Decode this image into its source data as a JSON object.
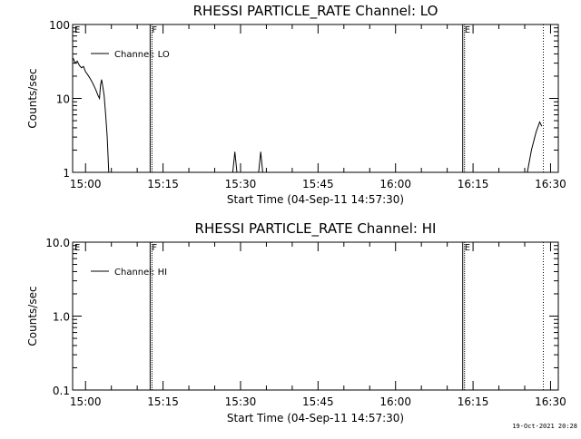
{
  "footer": {
    "timestamp": "19-Oct-2021 20:28"
  },
  "chart_data": [
    {
      "type": "line",
      "title": "RHESSI PARTICLE_RATE Channel: LO",
      "xlabel": "Start Time (04-Sep-11 14:57:30)",
      "ylabel": "Counts/sec",
      "yscale": "log",
      "ylim": [
        1,
        100
      ],
      "xlim_min": [
        -2.5,
        91.5
      ],
      "y_ticks": [
        {
          "v": 1,
          "label": "1"
        },
        {
          "v": 10,
          "label": "10"
        },
        {
          "v": 100,
          "label": "100"
        }
      ],
      "x_ticks": [
        {
          "v": 0,
          "label": "15:00"
        },
        {
          "v": 15,
          "label": "15:15"
        },
        {
          "v": 30,
          "label": "15:30"
        },
        {
          "v": 45,
          "label": "15:45"
        },
        {
          "v": 60,
          "label": "16:00"
        },
        {
          "v": 75,
          "label": "16:15"
        },
        {
          "v": 90,
          "label": "16:30"
        }
      ],
      "grid": false,
      "legend": {
        "position": "top-left",
        "entries": [
          {
            "label": "Channel: LO"
          }
        ]
      },
      "markers": [
        {
          "label": "E",
          "x": -2.5,
          "style": "solid",
          "show_line": false
        },
        {
          "label": "F",
          "x": 12.5,
          "style": "solid"
        },
        {
          "label": "E",
          "x": 73,
          "style": "solid"
        },
        {
          "label": "",
          "x": 88.6,
          "style": "dotted"
        }
      ],
      "series": [
        {
          "name": "Channel: LO",
          "segments": [
            [
              [
                -2.4,
                35
              ],
              [
                -2,
                30
              ],
              [
                -1.6,
                32
              ],
              [
                -1.2,
                28
              ],
              [
                -0.8,
                26
              ],
              [
                -0.4,
                27
              ],
              [
                0,
                23
              ],
              [
                0.4,
                21
              ],
              [
                0.8,
                19
              ],
              [
                1.2,
                17
              ],
              [
                1.6,
                15
              ],
              [
                2.0,
                13
              ],
              [
                2.4,
                11
              ],
              [
                2.7,
                10
              ],
              [
                2.9,
                15
              ],
              [
                3.1,
                18
              ],
              [
                3.3,
                15
              ],
              [
                3.6,
                11
              ],
              [
                3.9,
                6
              ],
              [
                4.2,
                3
              ],
              [
                4.5,
                1
              ]
            ],
            [
              [
                28.5,
                1
              ],
              [
                28.9,
                1.9
              ],
              [
                29.3,
                1
              ]
            ],
            [
              [
                33.5,
                1
              ],
              [
                33.9,
                1.9
              ],
              [
                34.3,
                1
              ]
            ],
            [
              [
                85.5,
                1
              ],
              [
                86.3,
                2
              ],
              [
                87.2,
                3.5
              ],
              [
                87.9,
                4.8
              ],
              [
                88.3,
                4.2
              ]
            ]
          ]
        }
      ]
    },
    {
      "type": "line",
      "title": "RHESSI PARTICLE_RATE Channel: HI",
      "xlabel": "Start Time (04-Sep-11 14:57:30)",
      "ylabel": "Counts/sec",
      "yscale": "log",
      "ylim": [
        0.1,
        10
      ],
      "xlim_min": [
        -2.5,
        91.5
      ],
      "y_ticks": [
        {
          "v": 0.1,
          "label": "0.1"
        },
        {
          "v": 1,
          "label": "1.0"
        },
        {
          "v": 10,
          "label": "10.0"
        }
      ],
      "x_ticks": [
        {
          "v": 0,
          "label": "15:00"
        },
        {
          "v": 15,
          "label": "15:15"
        },
        {
          "v": 30,
          "label": "15:30"
        },
        {
          "v": 45,
          "label": "15:45"
        },
        {
          "v": 60,
          "label": "16:00"
        },
        {
          "v": 75,
          "label": "16:15"
        },
        {
          "v": 90,
          "label": "16:30"
        }
      ],
      "grid": false,
      "legend": {
        "position": "top-left",
        "entries": [
          {
            "label": "Channel: HI"
          }
        ]
      },
      "markers": [
        {
          "label": "E",
          "x": -2.5,
          "style": "solid",
          "show_line": false
        },
        {
          "label": "F",
          "x": 12.5,
          "style": "solid"
        },
        {
          "label": "E",
          "x": 73,
          "style": "solid"
        },
        {
          "label": "",
          "x": 88.6,
          "style": "dotted"
        }
      ],
      "series": [
        {
          "name": "Channel: HI",
          "segments": []
        }
      ]
    }
  ]
}
